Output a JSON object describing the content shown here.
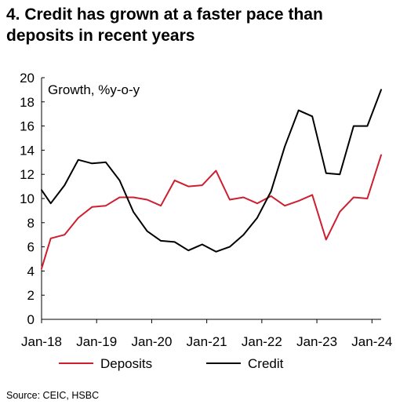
{
  "title_lines": [
    "4. Credit has grown at a faster pace than",
    "deposits in recent years"
  ],
  "source": "Source: CEIC, HSBC",
  "chart_data": {
    "type": "line",
    "title": "4. Credit has grown at a faster pace than deposits in recent years",
    "annotation": "Growth, %y-o-y",
    "xlabel": "",
    "ylabel": "",
    "ylim": [
      0,
      20
    ],
    "yticks": [
      0,
      2,
      4,
      6,
      8,
      10,
      12,
      14,
      16,
      18,
      20
    ],
    "x_tick_labels": [
      "Jan-18",
      "Jan-19",
      "Jan-20",
      "Jan-21",
      "Jan-22",
      "Jan-23",
      "Jan-24"
    ],
    "x_tick_dates": [
      "2018-01",
      "2019-01",
      "2020-01",
      "2021-01",
      "2022-01",
      "2023-01",
      "2024-01"
    ],
    "xlim": [
      "2018-01",
      "2024-03"
    ],
    "grid": false,
    "legend_position": "bottom",
    "colors": {
      "Deposits": "#cc1f30",
      "Credit": "#000000"
    },
    "series": [
      {
        "name": "Deposits",
        "x": [
          "2018-01",
          "2018-03",
          "2018-06",
          "2018-09",
          "2018-12",
          "2019-03",
          "2019-06",
          "2019-09",
          "2019-12",
          "2020-03",
          "2020-06",
          "2020-09",
          "2020-12",
          "2021-03",
          "2021-06",
          "2021-09",
          "2021-12",
          "2022-03",
          "2022-06",
          "2022-09",
          "2022-12",
          "2023-03",
          "2023-06",
          "2023-09",
          "2023-12",
          "2024-03"
        ],
        "values": [
          4.2,
          6.7,
          7.0,
          8.4,
          9.3,
          9.4,
          10.1,
          10.1,
          9.9,
          9.4,
          11.5,
          11.0,
          11.1,
          12.3,
          9.9,
          10.1,
          9.6,
          10.2,
          9.4,
          9.8,
          10.3,
          6.6,
          8.9,
          10.1,
          10.0,
          13.6
        ]
      },
      {
        "name": "Credit",
        "x": [
          "2018-01",
          "2018-03",
          "2018-06",
          "2018-09",
          "2018-12",
          "2019-03",
          "2019-06",
          "2019-09",
          "2019-12",
          "2020-03",
          "2020-06",
          "2020-09",
          "2020-12",
          "2021-03",
          "2021-06",
          "2021-09",
          "2021-12",
          "2022-03",
          "2022-06",
          "2022-09",
          "2022-12",
          "2023-03",
          "2023-06",
          "2023-09",
          "2023-12",
          "2024-03"
        ],
        "values": [
          10.7,
          9.6,
          11.1,
          13.2,
          12.9,
          13.0,
          11.5,
          8.9,
          7.3,
          6.5,
          6.4,
          5.7,
          6.2,
          5.6,
          6.0,
          7.0,
          8.4,
          10.6,
          14.3,
          17.3,
          16.8,
          12.1,
          12.0,
          16.0,
          16.0,
          19.0
        ]
      }
    ]
  }
}
